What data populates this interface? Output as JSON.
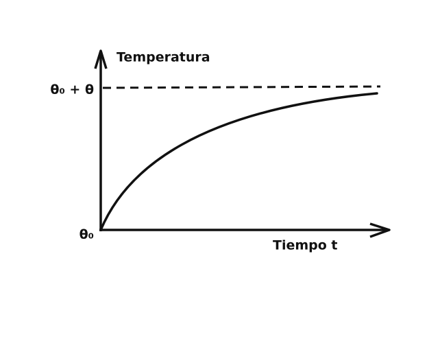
{
  "y_axis_label": "Temperatura",
  "x_axis_label": "Tiempo t",
  "upper_level_label": "θ₀ + θ",
  "origin_label": "θ₀"
}
